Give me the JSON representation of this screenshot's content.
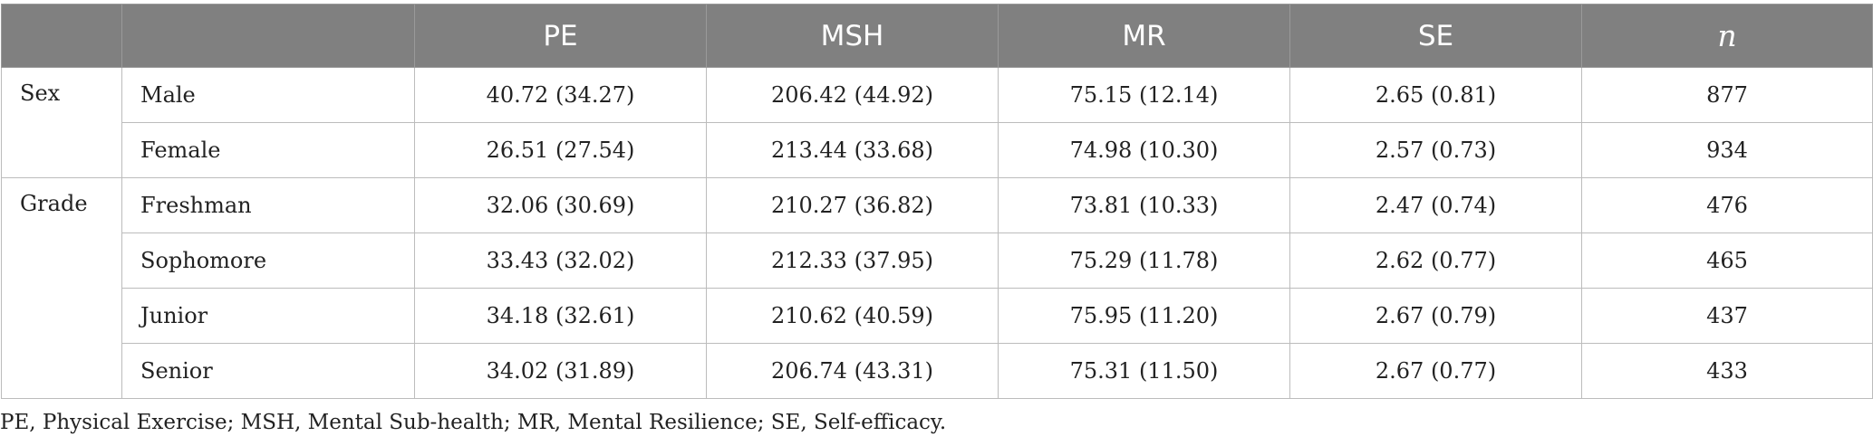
{
  "table": {
    "headers": [
      "",
      "",
      "PE",
      "MSH",
      "MR",
      "SE",
      "n"
    ],
    "groups": [
      {
        "label": "Sex",
        "rows": [
          {
            "label": "Male",
            "values": [
              "40.72 (34.27)",
              "206.42 (44.92)",
              "75.15 (12.14)",
              "2.65 (0.81)",
              "877"
            ]
          },
          {
            "label": "Female",
            "values": [
              "26.51 (27.54)",
              "213.44 (33.68)",
              "74.98 (10.30)",
              "2.57 (0.73)",
              "934"
            ]
          }
        ]
      },
      {
        "label": "Grade",
        "rows": [
          {
            "label": "Freshman",
            "values": [
              "32.06 (30.69)",
              "210.27 (36.82)",
              "73.81 (10.33)",
              "2.47 (0.74)",
              "476"
            ]
          },
          {
            "label": "Sophomore",
            "values": [
              "33.43 (32.02)",
              "212.33 (37.95)",
              "75.29 (11.78)",
              "2.62 (0.77)",
              "465"
            ]
          },
          {
            "label": "Junior",
            "values": [
              "34.18 (32.61)",
              "210.62 (40.59)",
              "75.95 (11.20)",
              "2.67 (0.79)",
              "437"
            ]
          },
          {
            "label": "Senior",
            "values": [
              "34.02 (31.89)",
              "206.74 (43.31)",
              "75.31 (11.50)",
              "2.67 (0.77)",
              "433"
            ]
          }
        ]
      }
    ]
  },
  "footnote": "PE, Physical Exercise; MSH, Mental Sub-health; MR, Mental Resilience; SE, Self-efficacy."
}
